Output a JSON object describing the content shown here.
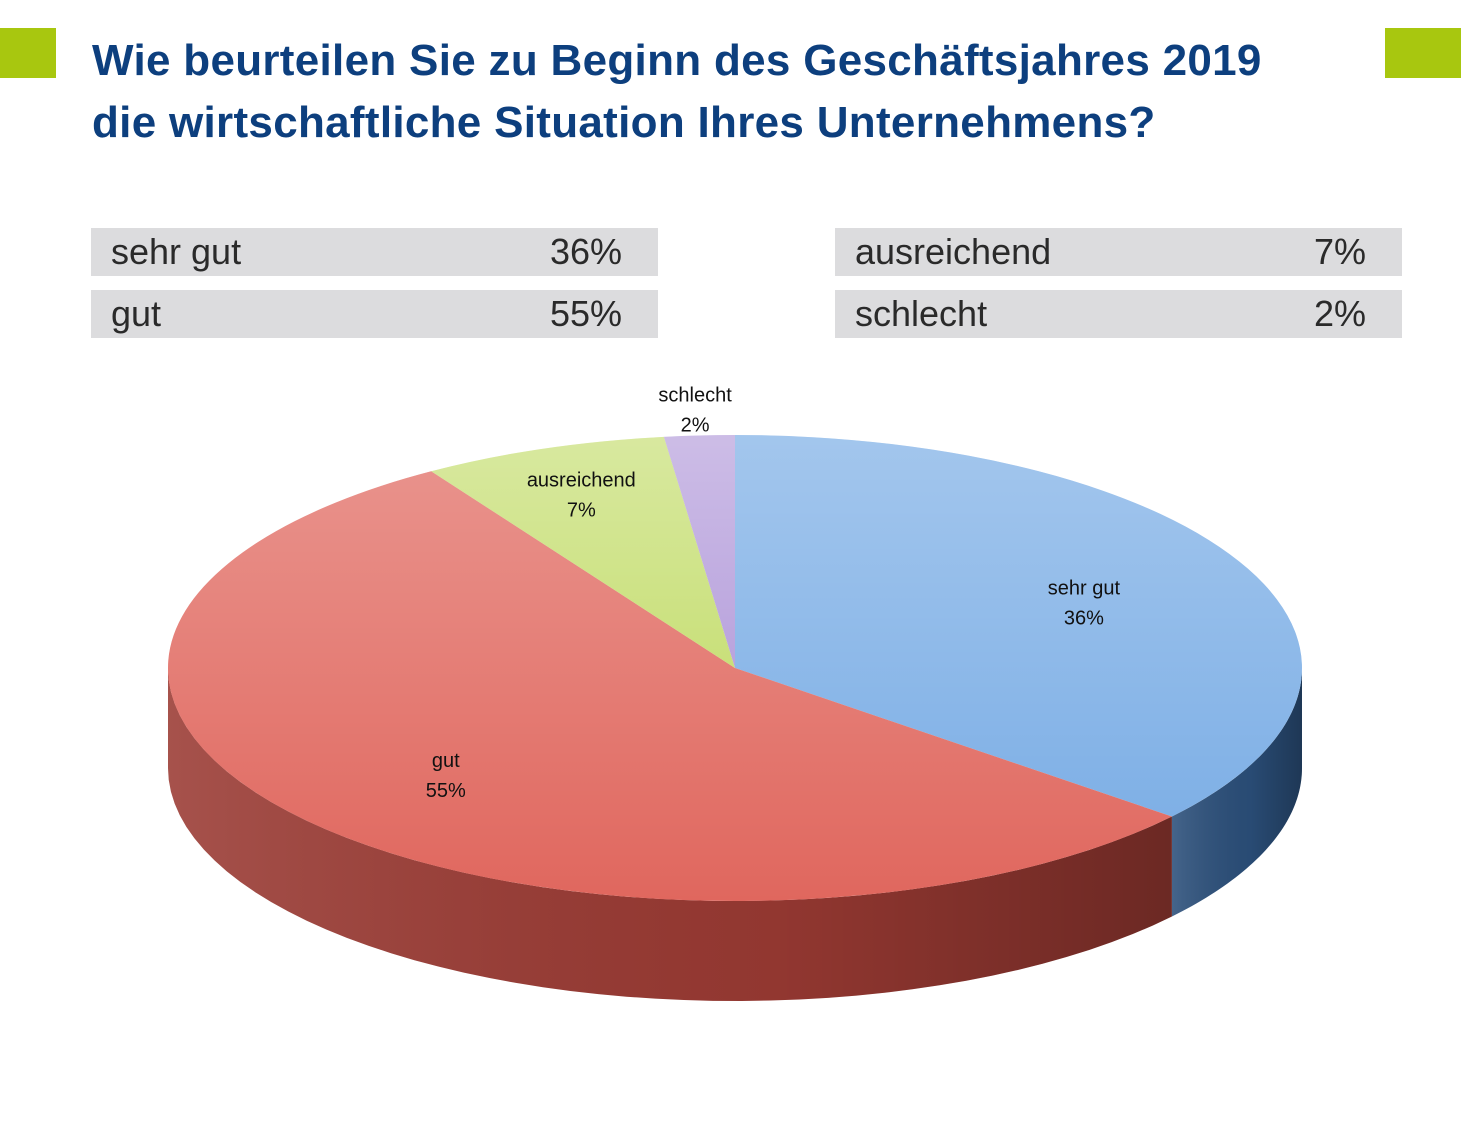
{
  "title_line1": "Wie beurteilen Sie zu Beginn des Geschäftsjahres 2019",
  "title_line2": "die wirtschaftliche Situation Ihres Unternehmens?",
  "legend": [
    {
      "label": "sehr gut",
      "value": "36%"
    },
    {
      "label": "gut",
      "value": "55%"
    },
    {
      "label": "ausreichend",
      "value": "7%"
    },
    {
      "label": "schlecht",
      "value": "2%"
    }
  ],
  "colors": {
    "accent": "#a8c70f",
    "title": "#0d3f7e",
    "legend_bg": "#dcdcde"
  },
  "chart_data": {
    "type": "pie",
    "style": "3d",
    "categories": [
      "sehr gut",
      "gut",
      "ausreichend",
      "schlecht"
    ],
    "values": [
      36,
      55,
      7,
      2
    ],
    "labels": [
      "36%",
      "55%",
      "7%",
      "2%"
    ],
    "colors": [
      "#7fb0e6",
      "#e0675e",
      "#c9e07a",
      "#b9a3dd"
    ],
    "side_colors": [
      "#2b4f7a",
      "#9a3a33",
      "#8aa040",
      "#7d6aa0"
    ]
  }
}
